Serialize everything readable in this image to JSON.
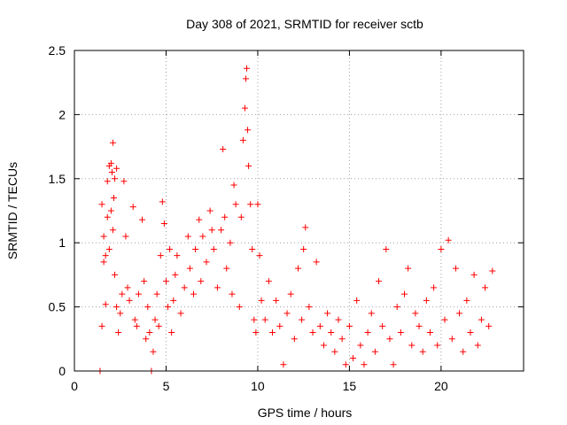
{
  "chart_data": {
    "type": "scatter",
    "title": "Day 308 of 2021, SRMTID for receiver sctb",
    "xlabel": "GPS time / hours",
    "ylabel": "SRMTID / TECUs",
    "xlim": [
      0,
      24.5
    ],
    "ylim": [
      0,
      2.5
    ],
    "xticks": [
      0,
      5,
      10,
      15,
      20
    ],
    "xtick_labels": [
      "0",
      "5",
      "10",
      "15",
      "20"
    ],
    "yticks": [
      0,
      0.5,
      1,
      1.5,
      2,
      2.5
    ],
    "ytick_labels": [
      "0",
      "0.5",
      "1",
      "1.5",
      "2",
      "2.5"
    ],
    "grid": true,
    "marker_color": "#ff0000",
    "marker": "plus",
    "series": [
      {
        "name": "SRMTID",
        "points": [
          [
            1.4,
            0.0
          ],
          [
            4.2,
            0.0
          ],
          [
            1.5,
            1.3
          ],
          [
            1.6,
            1.05
          ],
          [
            1.7,
            0.9
          ],
          [
            1.8,
            1.48
          ],
          [
            1.9,
            1.6
          ],
          [
            2.0,
            1.62
          ],
          [
            2.05,
            1.55
          ],
          [
            2.1,
            1.78
          ],
          [
            2.15,
            1.35
          ],
          [
            2.2,
            1.5
          ],
          [
            2.3,
            1.58
          ],
          [
            1.6,
            0.85
          ],
          [
            1.7,
            0.52
          ],
          [
            1.5,
            0.35
          ],
          [
            1.8,
            1.2
          ],
          [
            1.9,
            0.95
          ],
          [
            2.0,
            1.25
          ],
          [
            2.1,
            1.1
          ],
          [
            2.2,
            0.75
          ],
          [
            2.3,
            0.5
          ],
          [
            2.4,
            0.3
          ],
          [
            2.5,
            0.45
          ],
          [
            2.6,
            0.6
          ],
          [
            2.7,
            1.48
          ],
          [
            2.8,
            1.05
          ],
          [
            2.9,
            0.65
          ],
          [
            3.0,
            0.55
          ],
          [
            3.2,
            1.28
          ],
          [
            3.3,
            0.4
          ],
          [
            3.4,
            0.35
          ],
          [
            3.5,
            0.6
          ],
          [
            3.7,
            1.18
          ],
          [
            3.8,
            0.7
          ],
          [
            3.9,
            0.25
          ],
          [
            4.0,
            0.5
          ],
          [
            4.1,
            0.3
          ],
          [
            4.3,
            0.15
          ],
          [
            4.4,
            0.4
          ],
          [
            4.5,
            0.6
          ],
          [
            4.6,
            0.35
          ],
          [
            4.7,
            0.9
          ],
          [
            4.8,
            1.32
          ],
          [
            4.9,
            1.15
          ],
          [
            5.0,
            0.7
          ],
          [
            5.1,
            0.5
          ],
          [
            5.2,
            0.95
          ],
          [
            5.3,
            0.3
          ],
          [
            5.4,
            0.55
          ],
          [
            5.5,
            0.75
          ],
          [
            5.6,
            0.9
          ],
          [
            5.8,
            0.45
          ],
          [
            6.0,
            0.65
          ],
          [
            6.2,
            1.05
          ],
          [
            6.3,
            0.8
          ],
          [
            6.5,
            0.6
          ],
          [
            6.6,
            0.95
          ],
          [
            6.8,
            1.18
          ],
          [
            6.9,
            0.7
          ],
          [
            7.0,
            1.05
          ],
          [
            7.2,
            0.85
          ],
          [
            7.4,
            1.25
          ],
          [
            7.5,
            1.1
          ],
          [
            7.6,
            0.95
          ],
          [
            7.8,
            0.65
          ],
          [
            8.0,
            1.1
          ],
          [
            8.1,
            1.73
          ],
          [
            8.2,
            1.2
          ],
          [
            8.3,
            0.8
          ],
          [
            8.5,
            1.0
          ],
          [
            8.6,
            0.6
          ],
          [
            8.7,
            1.45
          ],
          [
            8.8,
            1.3
          ],
          [
            9.0,
            0.5
          ],
          [
            9.1,
            1.2
          ],
          [
            9.2,
            1.8
          ],
          [
            9.3,
            2.05
          ],
          [
            9.35,
            2.28
          ],
          [
            9.4,
            2.36
          ],
          [
            9.45,
            1.88
          ],
          [
            9.5,
            1.6
          ],
          [
            9.6,
            1.3
          ],
          [
            9.7,
            0.95
          ],
          [
            9.8,
            0.4
          ],
          [
            9.9,
            0.3
          ],
          [
            10.0,
            1.3
          ],
          [
            10.1,
            0.9
          ],
          [
            10.2,
            0.55
          ],
          [
            10.4,
            0.4
          ],
          [
            10.6,
            0.7
          ],
          [
            10.8,
            0.3
          ],
          [
            11.0,
            0.55
          ],
          [
            11.2,
            0.35
          ],
          [
            11.4,
            0.05
          ],
          [
            11.6,
            0.45
          ],
          [
            11.8,
            0.6
          ],
          [
            12.0,
            0.25
          ],
          [
            12.2,
            0.8
          ],
          [
            12.4,
            0.4
          ],
          [
            12.5,
            0.95
          ],
          [
            12.6,
            1.12
          ],
          [
            12.8,
            0.5
          ],
          [
            13.0,
            0.3
          ],
          [
            13.2,
            0.85
          ],
          [
            13.4,
            0.35
          ],
          [
            13.6,
            0.2
          ],
          [
            13.8,
            0.45
          ],
          [
            14.0,
            0.3
          ],
          [
            14.2,
            0.15
          ],
          [
            14.4,
            0.4
          ],
          [
            14.6,
            0.25
          ],
          [
            14.8,
            0.05
          ],
          [
            15.0,
            0.35
          ],
          [
            15.2,
            0.1
          ],
          [
            15.4,
            0.55
          ],
          [
            15.6,
            0.2
          ],
          [
            15.8,
            0.05
          ],
          [
            16.0,
            0.3
          ],
          [
            16.2,
            0.45
          ],
          [
            16.4,
            0.15
          ],
          [
            16.6,
            0.7
          ],
          [
            16.8,
            0.35
          ],
          [
            17.0,
            0.95
          ],
          [
            17.2,
            0.25
          ],
          [
            17.4,
            0.05
          ],
          [
            17.6,
            0.5
          ],
          [
            17.8,
            0.3
          ],
          [
            18.0,
            0.6
          ],
          [
            18.2,
            0.8
          ],
          [
            18.4,
            0.2
          ],
          [
            18.6,
            0.45
          ],
          [
            18.8,
            0.35
          ],
          [
            19.0,
            0.15
          ],
          [
            19.2,
            0.55
          ],
          [
            19.4,
            0.3
          ],
          [
            19.6,
            0.65
          ],
          [
            19.8,
            0.2
          ],
          [
            20.0,
            0.95
          ],
          [
            20.2,
            0.4
          ],
          [
            20.4,
            1.02
          ],
          [
            20.6,
            0.25
          ],
          [
            20.8,
            0.8
          ],
          [
            21.0,
            0.45
          ],
          [
            21.2,
            0.15
          ],
          [
            21.4,
            0.55
          ],
          [
            21.6,
            0.3
          ],
          [
            21.8,
            0.75
          ],
          [
            22.0,
            0.2
          ],
          [
            22.2,
            0.4
          ],
          [
            22.4,
            0.65
          ],
          [
            22.6,
            0.35
          ],
          [
            22.8,
            0.78
          ]
        ]
      }
    ]
  }
}
